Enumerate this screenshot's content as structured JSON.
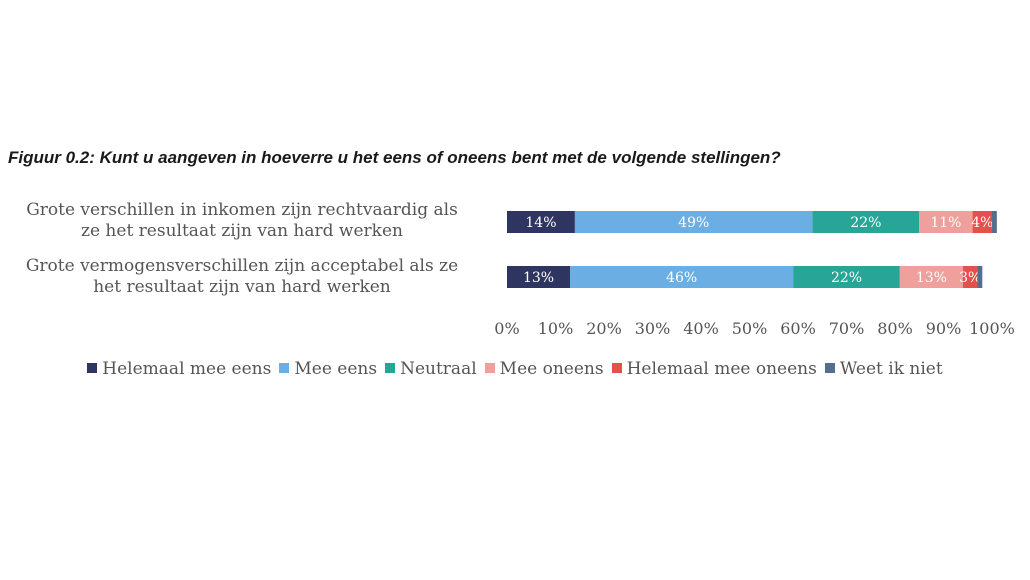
{
  "chart_data": {
    "type": "bar",
    "orientation": "horizontal",
    "stacked": true,
    "title": "Figuur 0.2: Kunt u aangeven in hoeverre u het eens of oneens bent met de volgende stellingen?",
    "categories": [
      [
        "Grote verschillen in inkomen zijn rechtvaardig als",
        "ze het resultaat zijn van hard werken"
      ],
      [
        "Grote vermogensverschillen zijn acceptabel als ze",
        "het resultaat zijn van hard werken"
      ]
    ],
    "series": [
      {
        "name": "Helemaal mee eens",
        "color": "#2e3560",
        "values": [
          14,
          13
        ],
        "labels": [
          "14%",
          "13%"
        ]
      },
      {
        "name": "Mee eens",
        "color": "#6aaee3",
        "values": [
          49,
          46
        ],
        "labels": [
          "49%",
          "46%"
        ]
      },
      {
        "name": "Neutraal",
        "color": "#27a596",
        "values": [
          22,
          22
        ],
        "labels": [
          "22%",
          "22%"
        ]
      },
      {
        "name": "Mee oneens",
        "color": "#ef9f9c",
        "values": [
          11,
          13
        ],
        "labels": [
          "11%",
          "13%"
        ]
      },
      {
        "name": "Helemaal mee oneens",
        "color": "#e2514a",
        "values": [
          4,
          3
        ],
        "labels": [
          "4%",
          "3%"
        ]
      },
      {
        "name": "Weet ik niet",
        "color": "#546f8d",
        "values": [
          1,
          1
        ],
        "labels": [
          "",
          ""
        ]
      }
    ],
    "x_ticks": [
      "0%",
      "10%",
      "20%",
      "30%",
      "40%",
      "50%",
      "60%",
      "70%",
      "80%",
      "90%",
      "100%"
    ],
    "xlim": [
      0,
      100
    ],
    "grid": false,
    "legend_position": "bottom"
  }
}
